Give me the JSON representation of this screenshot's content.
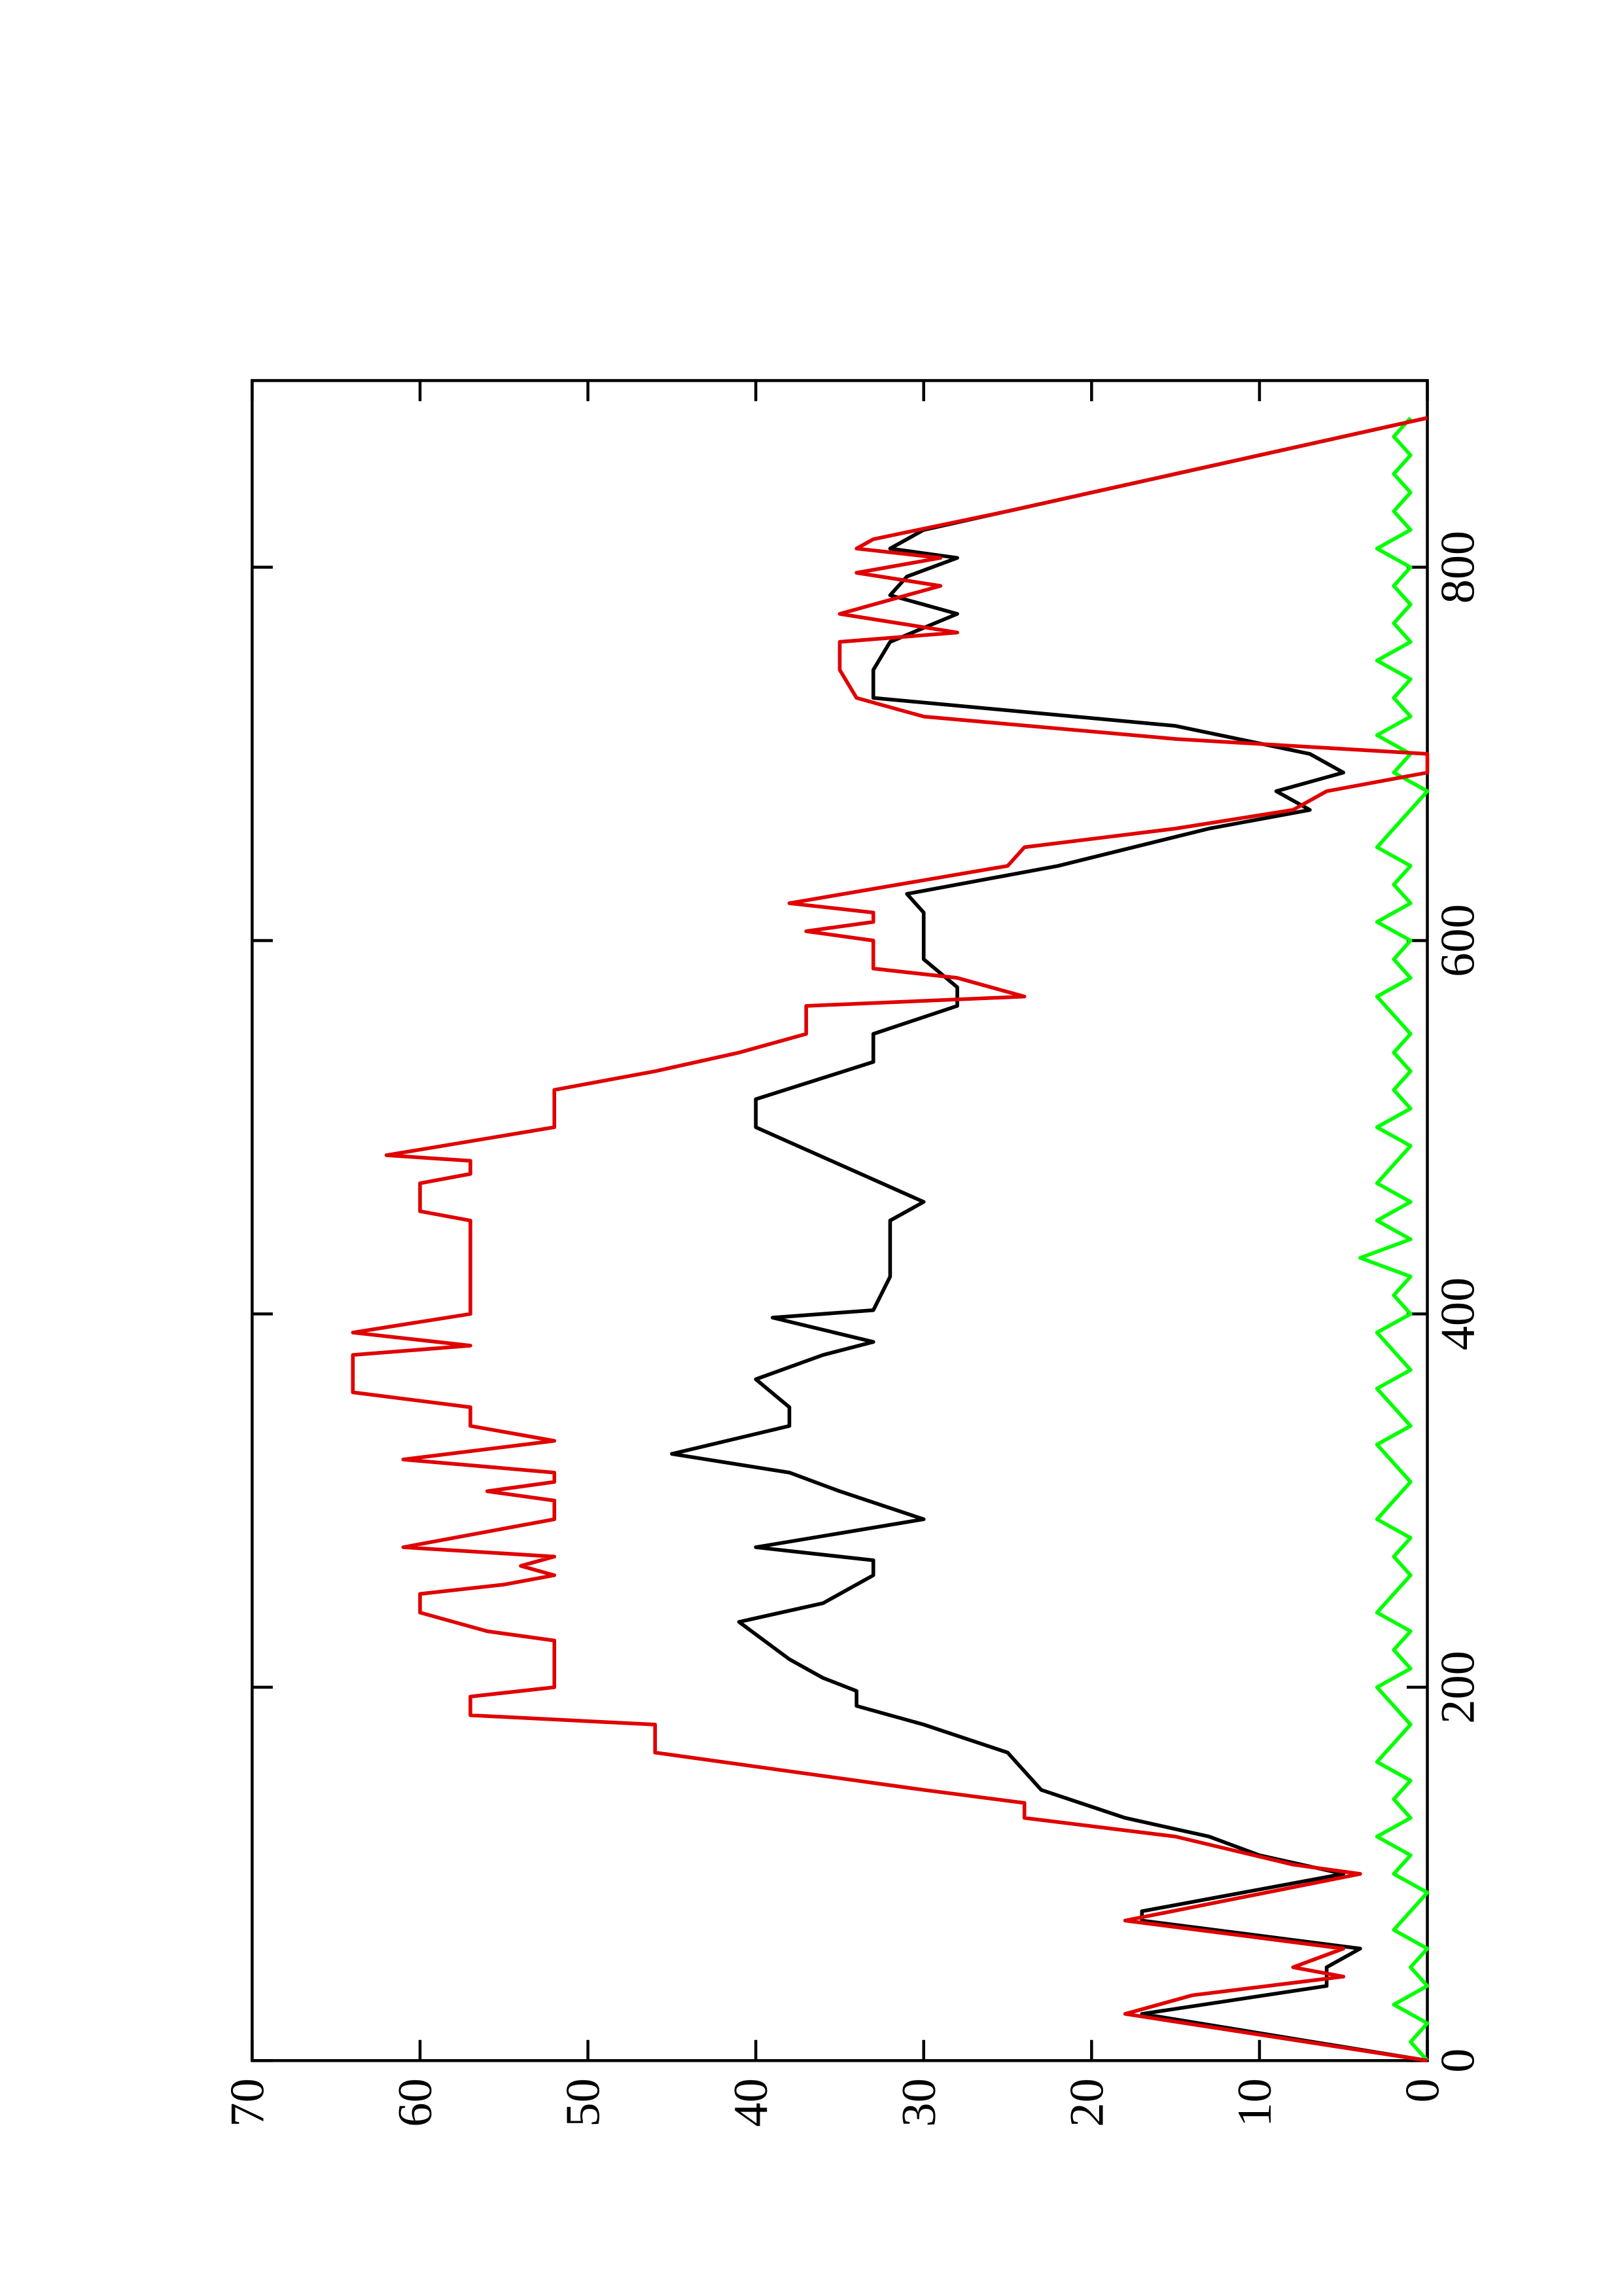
{
  "chart_data": {
    "type": "line",
    "xlim": [
      0,
      900
    ],
    "xticks": [
      0,
      200,
      400,
      600,
      800
    ],
    "ylim": [
      0,
      70
    ],
    "yticks": [
      0,
      10,
      20,
      30,
      40,
      50,
      60,
      70
    ],
    "rotated": true,
    "series": [
      {
        "color": "#00ff00",
        "x": [
          0,
          10,
          20,
          30,
          40,
          50,
          60,
          70,
          80,
          90,
          100,
          110,
          120,
          130,
          140,
          150,
          160,
          170,
          180,
          190,
          200,
          210,
          220,
          230,
          240,
          250,
          260,
          270,
          280,
          290,
          300,
          310,
          320,
          330,
          340,
          350,
          360,
          370,
          380,
          390,
          400,
          410,
          420,
          430,
          440,
          450,
          460,
          470,
          480,
          490,
          500,
          510,
          520,
          530,
          540,
          550,
          560,
          570,
          580,
          590,
          600,
          610,
          620,
          630,
          640,
          650,
          660,
          670,
          680,
          690,
          700,
          710,
          720,
          730,
          740,
          750,
          760,
          770,
          780,
          790,
          800,
          810,
          820,
          830,
          840,
          850,
          860,
          870,
          880
        ],
        "values": [
          0,
          1,
          0,
          2,
          0,
          1,
          0,
          2,
          1,
          0,
          2,
          1,
          3,
          1,
          2,
          1,
          3,
          2,
          1,
          2,
          3,
          1,
          2,
          1,
          3,
          2,
          1,
          2,
          1,
          3,
          2,
          1,
          2,
          3,
          1,
          2,
          3,
          1,
          2,
          3,
          1,
          2,
          1,
          4,
          1,
          3,
          1,
          3,
          2,
          1,
          3,
          1,
          2,
          1,
          2,
          1,
          2,
          3,
          1,
          2,
          1,
          3,
          1,
          2,
          1,
          3,
          2,
          1,
          0,
          2,
          1,
          3,
          1,
          2,
          1,
          3,
          1,
          2,
          1,
          2,
          1,
          3,
          1,
          2,
          1,
          2,
          1,
          2,
          1
        ]
      },
      {
        "color": "#000000",
        "x": [
          0,
          25,
          40,
          50,
          60,
          75,
          80,
          100,
          110,
          120,
          130,
          145,
          155,
          165,
          180,
          190,
          198,
          205,
          215,
          235,
          245,
          260,
          268,
          275,
          290,
          305,
          315,
          325,
          340,
          350,
          365,
          378,
          385,
          398,
          402,
          420,
          450,
          460,
          480,
          500,
          515,
          535,
          550,
          565,
          575,
          590,
          615,
          625,
          640,
          660,
          670,
          680,
          690,
          700,
          715,
          730,
          745,
          760,
          775,
          785,
          795,
          805,
          810,
          820,
          840,
          860,
          880
        ],
        "values": [
          0,
          17,
          6,
          6,
          4,
          17,
          17,
          5,
          10,
          13,
          18,
          23,
          24,
          25,
          30,
          34,
          34,
          36,
          38,
          41,
          36,
          33,
          33,
          40,
          30,
          35,
          38,
          45,
          38,
          38,
          40,
          36,
          33,
          39,
          33,
          32,
          32,
          30,
          35,
          40,
          40,
          33,
          33,
          28,
          28,
          30,
          30,
          31,
          22,
          13,
          7,
          9,
          5,
          7,
          15,
          33,
          33,
          32,
          28,
          32,
          31,
          28,
          32,
          30,
          20,
          10,
          0
        ]
      },
      {
        "color": "#e00000",
        "x": [
          0,
          25,
          35,
          45,
          50,
          60,
          75,
          100,
          105,
          120,
          130,
          138,
          145,
          155,
          165,
          180,
          185,
          195,
          200,
          225,
          230,
          240,
          250,
          255,
          260,
          265,
          270,
          275,
          290,
          300,
          305,
          310,
          315,
          322,
          332,
          340,
          350,
          358,
          378,
          383,
          390,
          400,
          450,
          455,
          470,
          475,
          482,
          485,
          500,
          520,
          530,
          540,
          550,
          565,
          570,
          580,
          585,
          600,
          605,
          610,
          615,
          620,
          640,
          650,
          660,
          670,
          680,
          690,
          700,
          708,
          720,
          730,
          745,
          760,
          765,
          775,
          790,
          797,
          805,
          810,
          815,
          830,
          850,
          870,
          880
        ],
        "values": [
          0,
          18,
          14,
          5,
          8,
          5,
          18,
          4,
          8,
          15,
          24,
          24,
          30,
          38,
          46,
          46,
          57,
          57,
          52,
          52,
          56,
          60,
          60,
          55,
          52,
          54,
          52,
          61,
          52,
          52,
          56,
          52,
          52,
          61,
          52,
          57,
          57,
          64,
          64,
          57,
          64,
          57,
          57,
          60,
          60,
          57,
          57,
          62,
          52,
          52,
          46,
          41,
          37,
          37,
          24,
          28,
          33,
          33,
          37,
          33,
          33,
          38,
          25,
          24,
          15,
          8,
          6,
          0,
          0,
          15,
          30,
          34,
          35,
          35,
          28,
          35,
          29,
          34,
          29,
          34,
          33,
          25,
          15,
          5,
          0
        ]
      }
    ]
  }
}
